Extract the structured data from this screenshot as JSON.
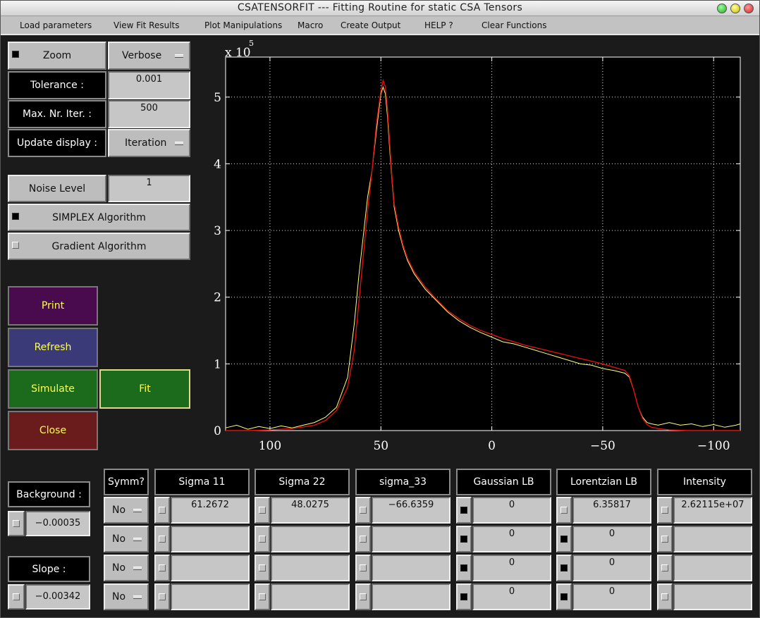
{
  "window": {
    "title": "CSATENSORFIT --- Fitting Routine for static CSA Tensors"
  },
  "menu": [
    "Load parameters",
    "View Fit Results",
    "Plot Manipulations",
    "Macro",
    "Create Output",
    "HELP ?",
    "Clear Functions"
  ],
  "controls": {
    "zoom_label": "Zoom",
    "verbose_label": "Verbose",
    "tolerance_label": "Tolerance :",
    "tolerance_value": "0.001",
    "maxiter_label": "Max. Nr. Iter. :",
    "maxiter_value": "500",
    "update_label": "Update display :",
    "update_value": "Iteration",
    "noise_label": "Noise Level",
    "noise_value": "1",
    "simplex_label": "SIMPLEX Algorithm",
    "gradient_label": "Gradient Algorithm"
  },
  "actions": {
    "print": "Print",
    "refresh": "Refresh",
    "simulate": "Simulate",
    "fit": "Fit",
    "close": "Close"
  },
  "colors": {
    "print": "#4a0b4e",
    "refresh": "#3a3a78",
    "simulate": "#1c6a1c",
    "fit": "#1c6a1c",
    "close": "#6a1c1c",
    "data_line": "#ffff80",
    "fit_line": "#dd1010"
  },
  "background": {
    "label": "Background :",
    "value": "−0.00035"
  },
  "slope": {
    "label": "Slope :",
    "value": "−0.00342"
  },
  "table": {
    "symm_header": "Symm?",
    "columns": [
      {
        "header": "Sigma 11",
        "values": [
          "61.2672",
          "",
          "",
          ""
        ],
        "checks": [
          false,
          false,
          false,
          false
        ]
      },
      {
        "header": "Sigma 22",
        "values": [
          "48.0275",
          "",
          "",
          ""
        ],
        "checks": [
          false,
          false,
          false,
          false
        ]
      },
      {
        "header": "sigma_33",
        "values": [
          "−66.6359",
          "",
          "",
          ""
        ],
        "checks": [
          false,
          false,
          false,
          false
        ]
      },
      {
        "header": "Gaussian LB",
        "values": [
          "0",
          "0",
          "0",
          "0"
        ],
        "checks": [
          true,
          true,
          true,
          true
        ]
      },
      {
        "header": "Lorentzian LB",
        "values": [
          "6.35817",
          "0",
          "0",
          "0"
        ],
        "checks": [
          false,
          true,
          true,
          true
        ]
      },
      {
        "header": "Intensity",
        "values": [
          "2.62115e+07",
          "",
          "",
          ""
        ],
        "checks": [
          false,
          false,
          false,
          false
        ]
      }
    ],
    "symm": [
      "No",
      "No",
      "No",
      "No"
    ]
  },
  "chart_data": {
    "type": "line",
    "title": "",
    "xlabel": "",
    "ylabel": "",
    "exponent_label": "x 10",
    "exponent": "5",
    "xlim": [
      120,
      -112
    ],
    "ylim": [
      0,
      5.6
    ],
    "x_ticks": [
      100,
      50,
      0,
      -50,
      -100
    ],
    "x_tick_labels": [
      "100",
      "50",
      "0",
      "−50",
      "−100"
    ],
    "y_ticks": [
      0,
      1,
      2,
      3,
      4,
      5
    ],
    "y_tick_labels": [
      "0",
      "1",
      "2",
      "3",
      "4",
      "5"
    ],
    "grid": true,
    "series": [
      {
        "color": "#ffff80",
        "x": [
          120,
          115,
          110,
          105,
          100,
          95,
          90,
          85,
          80,
          75,
          70,
          65,
          62,
          60,
          58,
          56,
          54,
          52,
          50,
          49,
          48,
          47,
          46,
          45,
          44,
          42,
          40,
          38,
          35,
          30,
          25,
          20,
          15,
          10,
          5,
          0,
          -5,
          -10,
          -15,
          -20,
          -25,
          -30,
          -35,
          -40,
          -45,
          -50,
          -55,
          -60,
          -62,
          -64,
          -66,
          -68,
          -70,
          -72,
          -75,
          -80,
          -85,
          -90,
          -95,
          -100,
          -105,
          -110,
          -112
        ],
        "y": [
          0.04,
          0.08,
          0.02,
          0.06,
          0.03,
          0.07,
          0.04,
          0.08,
          0.12,
          0.2,
          0.35,
          0.8,
          1.6,
          2.3,
          2.9,
          3.5,
          3.9,
          4.5,
          5.05,
          5.15,
          5.05,
          4.7,
          4.2,
          3.75,
          3.35,
          3.0,
          2.75,
          2.55,
          2.35,
          2.12,
          1.95,
          1.78,
          1.65,
          1.55,
          1.47,
          1.4,
          1.33,
          1.3,
          1.25,
          1.2,
          1.15,
          1.1,
          1.05,
          1.0,
          0.98,
          0.93,
          0.9,
          0.86,
          0.8,
          0.6,
          0.35,
          0.2,
          0.12,
          0.1,
          0.08,
          0.12,
          0.08,
          0.1,
          0.06,
          0.09,
          0.05,
          0.08,
          0.1
        ]
      },
      {
        "color": "#dd1010",
        "x": [
          120,
          110,
          100,
          90,
          80,
          75,
          70,
          65,
          62,
          60,
          58,
          56,
          54,
          52,
          50,
          49,
          48,
          47,
          46,
          45,
          44,
          42,
          40,
          38,
          35,
          30,
          25,
          20,
          15,
          10,
          5,
          0,
          -5,
          -10,
          -15,
          -20,
          -25,
          -30,
          -35,
          -40,
          -45,
          -50,
          -55,
          -60,
          -62,
          -64,
          -66,
          -68,
          -70,
          -72,
          -75,
          -80,
          -90,
          -100,
          -112
        ],
        "y": [
          0.0,
          0.0,
          0.01,
          0.03,
          0.08,
          0.15,
          0.3,
          0.65,
          1.2,
          1.9,
          2.6,
          3.3,
          3.9,
          4.6,
          5.1,
          5.25,
          5.15,
          4.8,
          4.3,
          3.8,
          3.4,
          3.05,
          2.78,
          2.58,
          2.38,
          2.15,
          1.97,
          1.8,
          1.68,
          1.58,
          1.5,
          1.44,
          1.38,
          1.33,
          1.28,
          1.24,
          1.2,
          1.16,
          1.12,
          1.08,
          1.04,
          1.0,
          0.95,
          0.9,
          0.82,
          0.6,
          0.35,
          0.18,
          0.09,
          0.05,
          0.03,
          0.01,
          0.0,
          0.0,
          0.0
        ]
      }
    ]
  }
}
